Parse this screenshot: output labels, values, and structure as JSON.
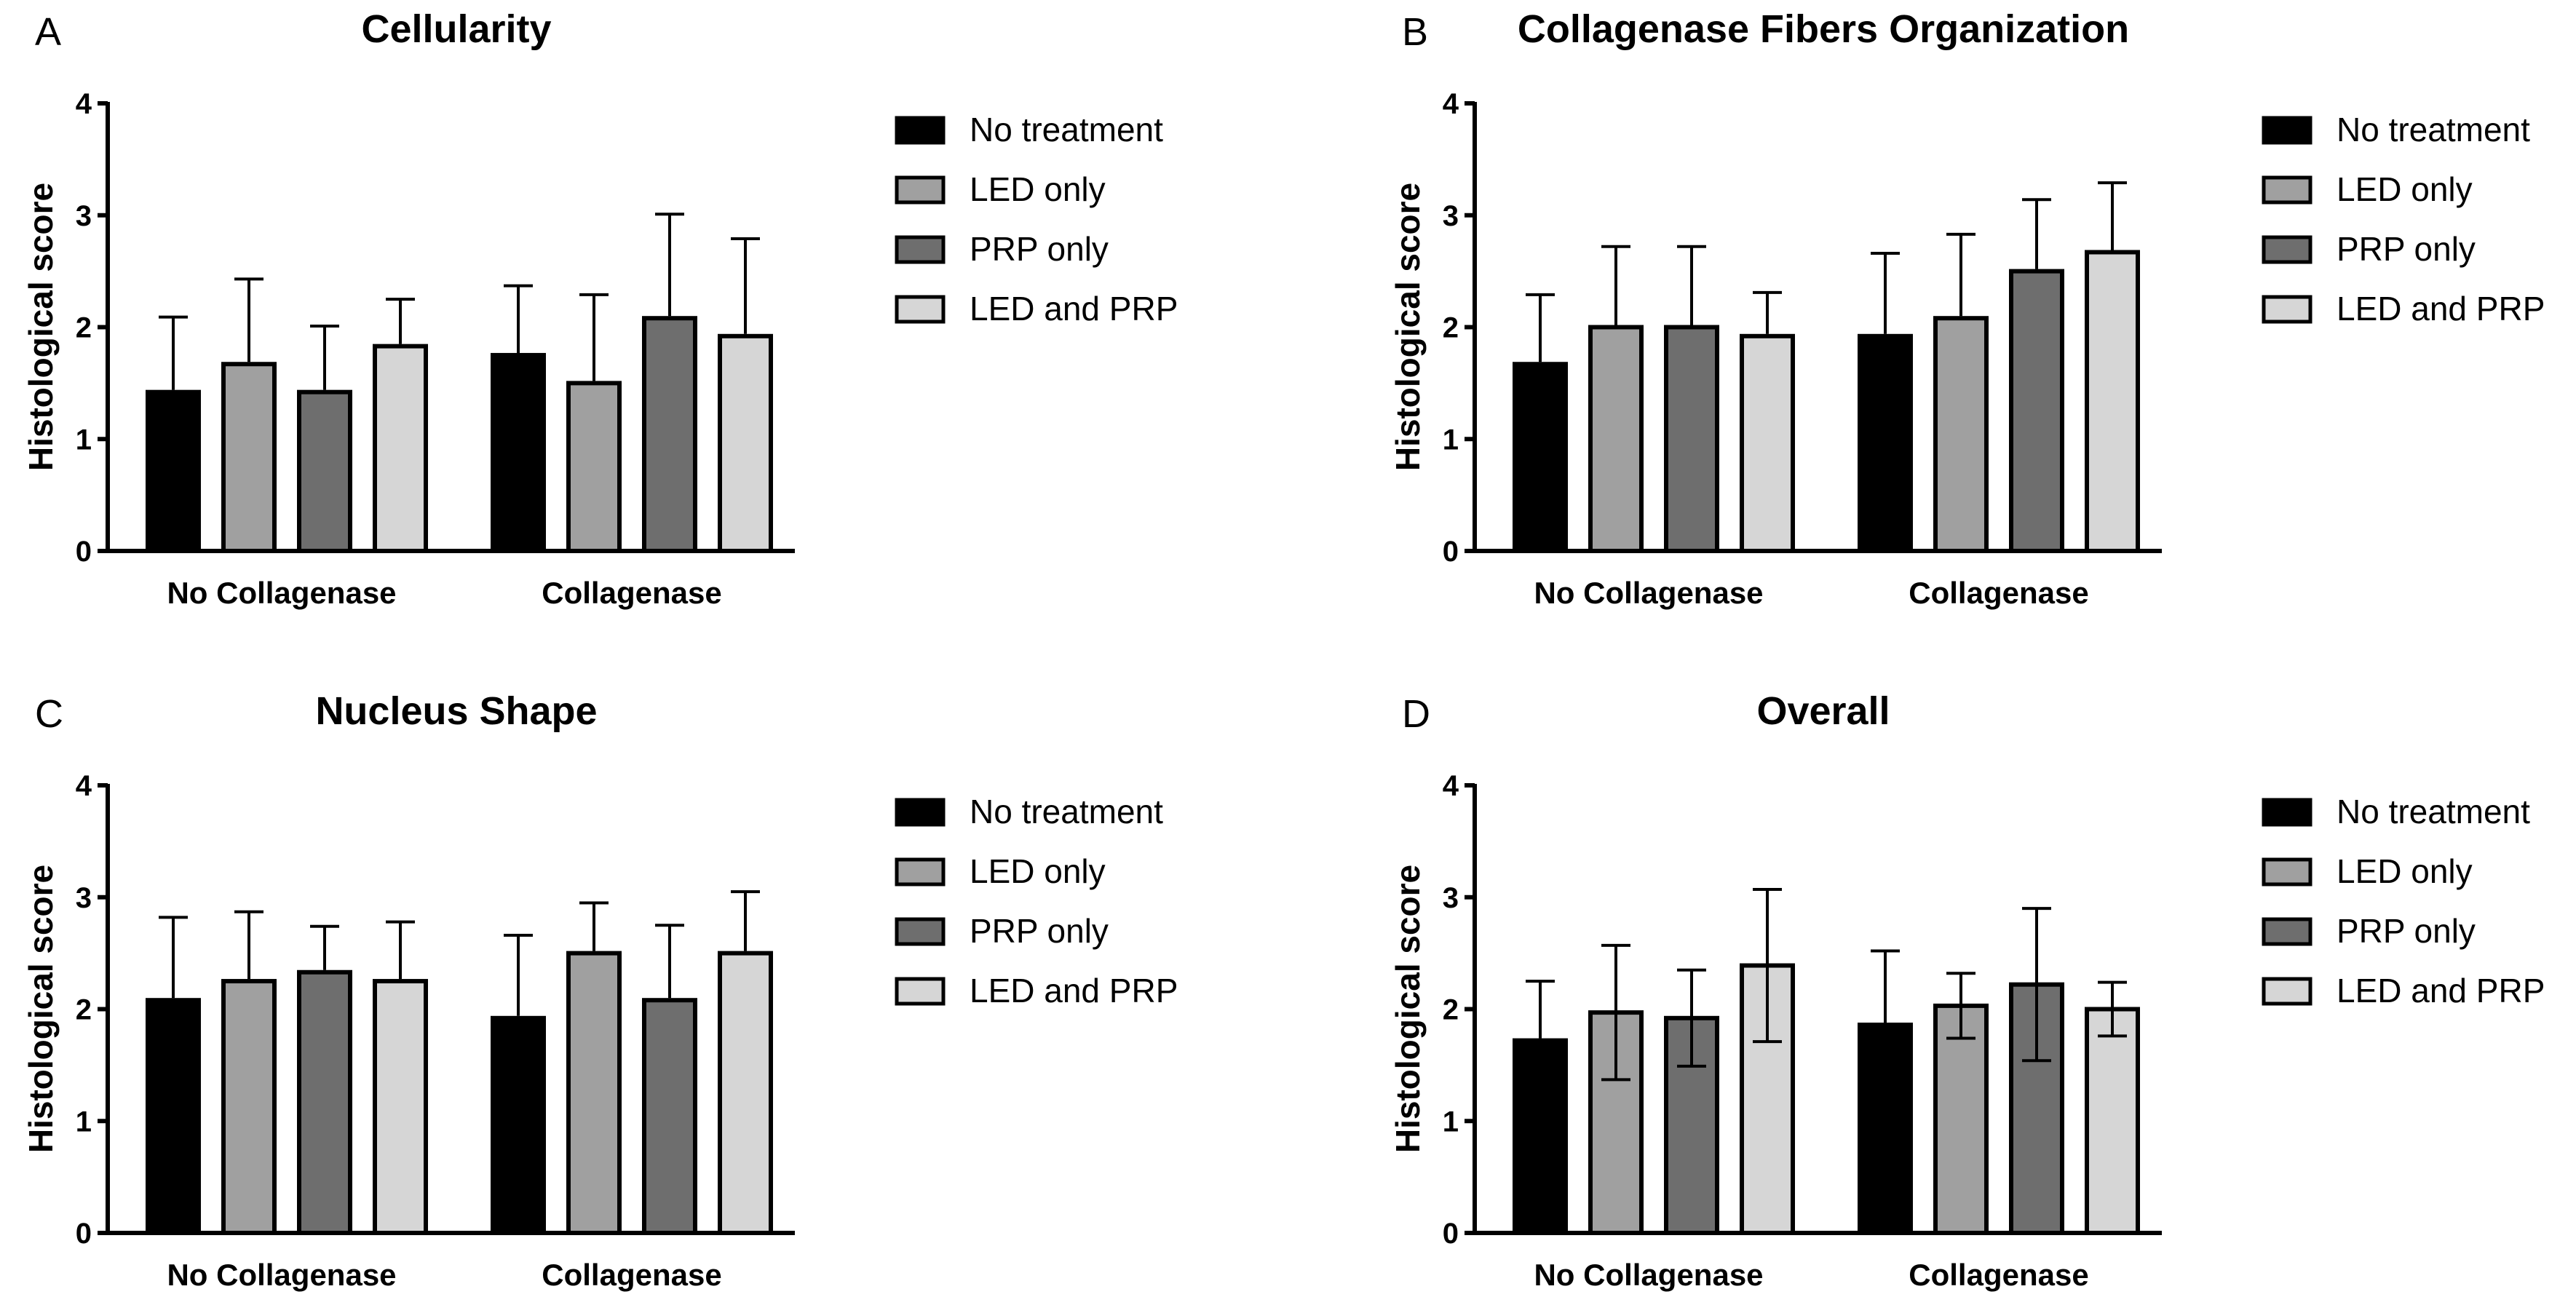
{
  "chart_data": [
    {
      "type": "bar",
      "panel": "A",
      "title": "Cellularity",
      "xlabel": "",
      "ylabel": "Histological score",
      "ylim": [
        0,
        4
      ],
      "yticks": [
        0,
        1,
        2,
        3,
        4
      ],
      "categories": [
        "No Collagenase",
        "Collagenase"
      ],
      "series": [
        {
          "name": "No treatment",
          "color": "#000000",
          "values": [
            1.42,
            1.75
          ],
          "errors": [
            0.67,
            0.62
          ],
          "error_style": "upper"
        },
        {
          "name": "LED only",
          "color": "#a0a0a0",
          "values": [
            1.67,
            1.5
          ],
          "errors": [
            0.76,
            0.79
          ],
          "error_style": "upper"
        },
        {
          "name": "PRP only",
          "color": "#6e6e6e",
          "values": [
            1.42,
            2.08
          ],
          "errors": [
            0.59,
            0.93
          ],
          "error_style": "upper"
        },
        {
          "name": "LED and PRP",
          "color": "#d6d6d6",
          "values": [
            1.83,
            1.92
          ],
          "errors": [
            0.42,
            0.87
          ],
          "error_style": "upper"
        }
      ],
      "legend": "right"
    },
    {
      "type": "bar",
      "panel": "B",
      "title": "Collagenase Fibers Organization",
      "xlabel": "",
      "ylabel": "Histological score",
      "ylim": [
        0,
        4
      ],
      "yticks": [
        0,
        1,
        2,
        3,
        4
      ],
      "categories": [
        "No Collagenase",
        "Collagenase"
      ],
      "series": [
        {
          "name": "No treatment",
          "color": "#000000",
          "values": [
            1.67,
            1.92
          ],
          "errors": [
            0.62,
            0.74
          ],
          "error_style": "upper"
        },
        {
          "name": "LED only",
          "color": "#a0a0a0",
          "values": [
            2.0,
            2.08
          ],
          "errors": [
            0.72,
            0.75
          ],
          "error_style": "upper"
        },
        {
          "name": "PRP only",
          "color": "#6e6e6e",
          "values": [
            2.0,
            2.5
          ],
          "errors": [
            0.72,
            0.64
          ],
          "error_style": "upper"
        },
        {
          "name": "LED and PRP",
          "color": "#d6d6d6",
          "values": [
            1.92,
            2.67
          ],
          "errors": [
            0.39,
            0.62
          ],
          "error_style": "upper"
        }
      ],
      "legend": "right"
    },
    {
      "type": "bar",
      "panel": "C",
      "title": "Nucleus Shape",
      "xlabel": "",
      "ylabel": "Histological score",
      "ylim": [
        0,
        4
      ],
      "yticks": [
        0,
        1,
        2,
        3,
        4
      ],
      "categories": [
        "No Collagenase",
        "Collagenase"
      ],
      "series": [
        {
          "name": "No treatment",
          "color": "#000000",
          "values": [
            2.08,
            1.92
          ],
          "errors": [
            0.74,
            0.74
          ],
          "error_style": "upper"
        },
        {
          "name": "LED only",
          "color": "#a0a0a0",
          "values": [
            2.25,
            2.5
          ],
          "errors": [
            0.62,
            0.45
          ],
          "error_style": "upper"
        },
        {
          "name": "PRP only",
          "color": "#6e6e6e",
          "values": [
            2.33,
            2.08
          ],
          "errors": [
            0.41,
            0.67
          ],
          "error_style": "upper"
        },
        {
          "name": "LED and PRP",
          "color": "#d6d6d6",
          "values": [
            2.25,
            2.5
          ],
          "errors": [
            0.53,
            0.55
          ],
          "error_style": "upper"
        }
      ],
      "legend": "right"
    },
    {
      "type": "bar",
      "panel": "D",
      "title": "Overall",
      "xlabel": "",
      "ylabel": "Histological score",
      "ylim": [
        0,
        4
      ],
      "yticks": [
        0,
        1,
        2,
        3,
        4
      ],
      "categories": [
        "No Collagenase",
        "Collagenase"
      ],
      "series": [
        {
          "name": "No treatment",
          "color": "#000000",
          "values": [
            1.72,
            1.86
          ],
          "errors": [
            0.53,
            0.66
          ],
          "error_style": "upper"
        },
        {
          "name": "LED only",
          "color": "#a0a0a0",
          "values": [
            1.97,
            2.03
          ],
          "errors": [
            0.6,
            0.29
          ],
          "error_style": "both"
        },
        {
          "name": "PRP only",
          "color": "#6e6e6e",
          "values": [
            1.92,
            2.22
          ],
          "errors": [
            0.43,
            0.68
          ],
          "error_style": "both"
        },
        {
          "name": "LED and PRP",
          "color": "#d6d6d6",
          "values": [
            2.39,
            2.0
          ],
          "errors": [
            0.68,
            0.24
          ],
          "error_style": "both"
        }
      ],
      "legend": "right"
    }
  ]
}
